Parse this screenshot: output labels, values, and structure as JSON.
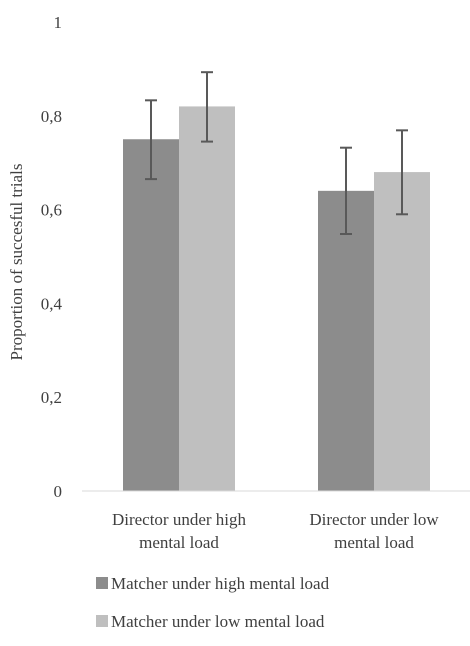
{
  "chart_data": {
    "type": "bar",
    "ylabel": "Proportion of succesful trials",
    "xlabel": "",
    "ylim": [
      0,
      1
    ],
    "yticks": [
      0,
      0.2,
      0.4,
      0.6,
      0.8,
      1
    ],
    "ytick_labels": [
      "0",
      "0,2",
      "0,4",
      "0,6",
      "0,8",
      "1"
    ],
    "categories": [
      [
        "Director under high",
        "mental load"
      ],
      [
        "Director under low",
        "mental load"
      ]
    ],
    "series": [
      {
        "name": "Matcher under high mental load",
        "color": "#8c8c8c",
        "values": [
          0.75,
          0.64
        ],
        "error_low": [
          0.665,
          0.548
        ],
        "error_high": [
          0.833,
          0.732
        ]
      },
      {
        "name": "Matcher under low mental load",
        "color": "#bfbfbf",
        "values": [
          0.82,
          0.68
        ],
        "error_low": [
          0.745,
          0.59
        ],
        "error_high": [
          0.893,
          0.769
        ]
      }
    ],
    "grid": false,
    "legend_position": "bottom"
  }
}
